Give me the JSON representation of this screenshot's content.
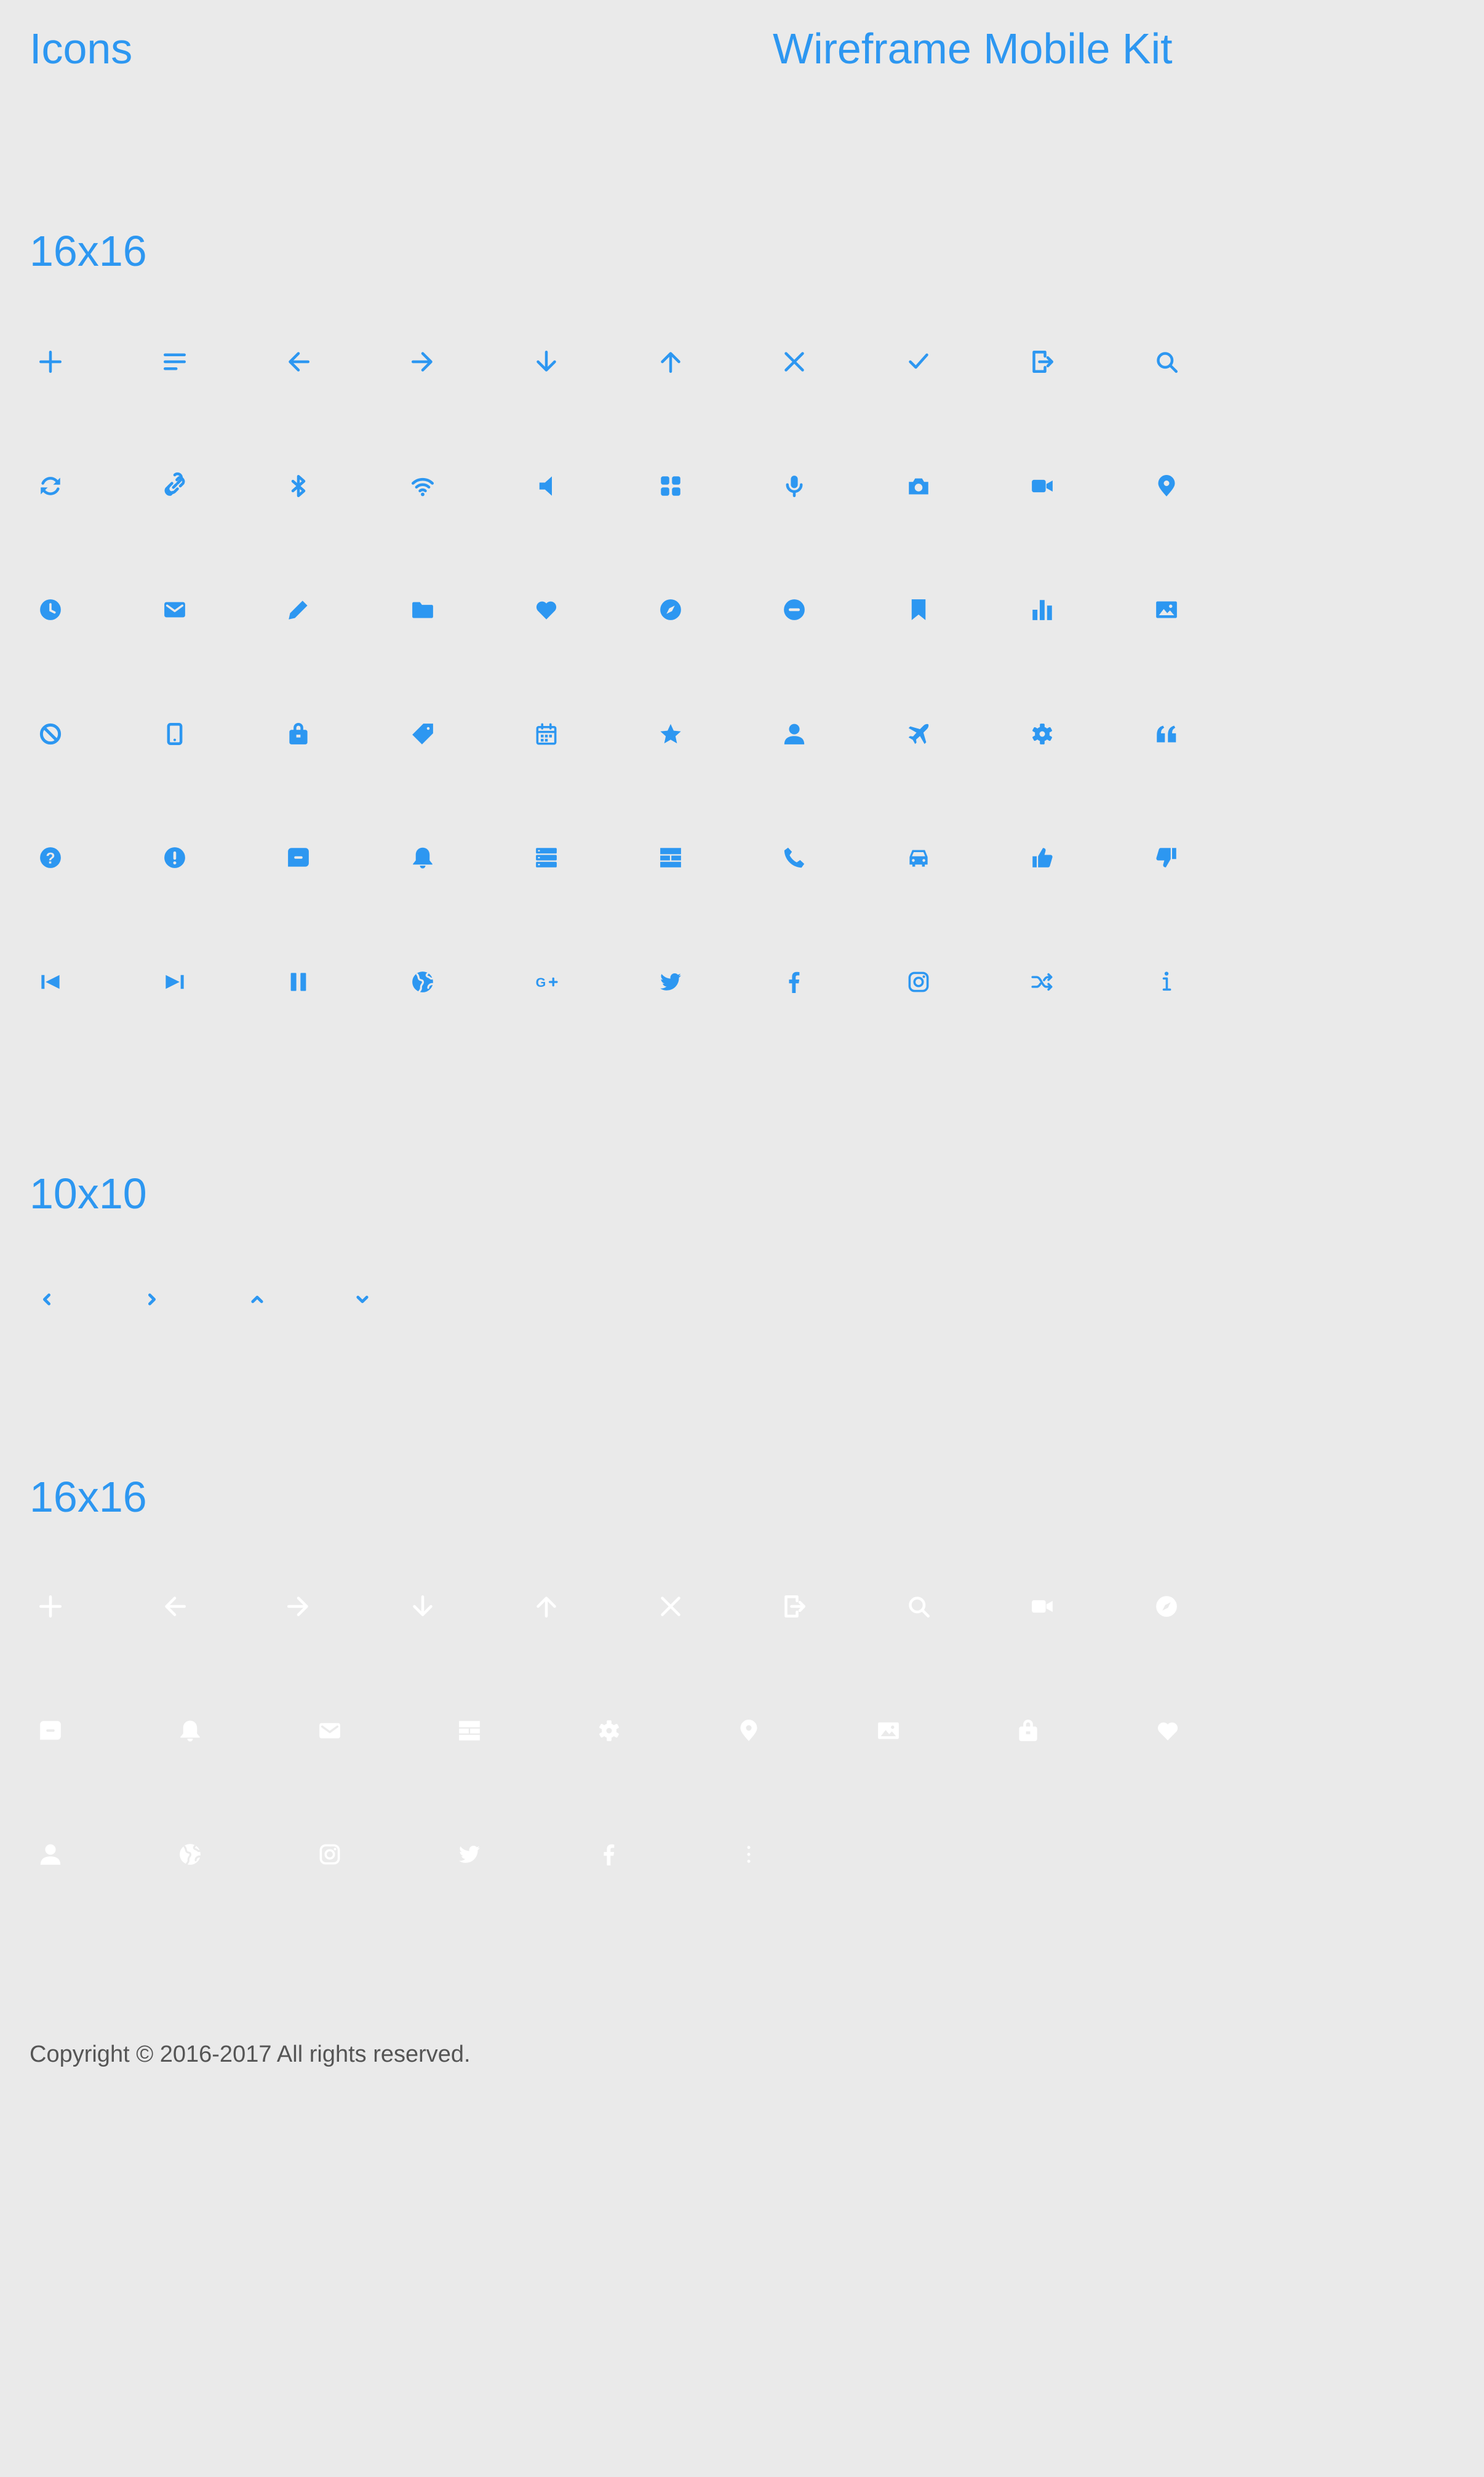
{
  "header": {
    "title_left": "Icons",
    "title_right": "Wireframe Mobile Kit"
  },
  "sections": [
    {
      "title": "16x16"
    },
    {
      "title": "10x10"
    },
    {
      "title": "16x16"
    }
  ],
  "colors": {
    "accent": "#2d97f1",
    "background": "#eaeaea",
    "white_icons": "#ffffff",
    "footer_text": "#555555"
  },
  "footer": {
    "copyright": "Copyright © 2016-2017 All rights reserved."
  }
}
